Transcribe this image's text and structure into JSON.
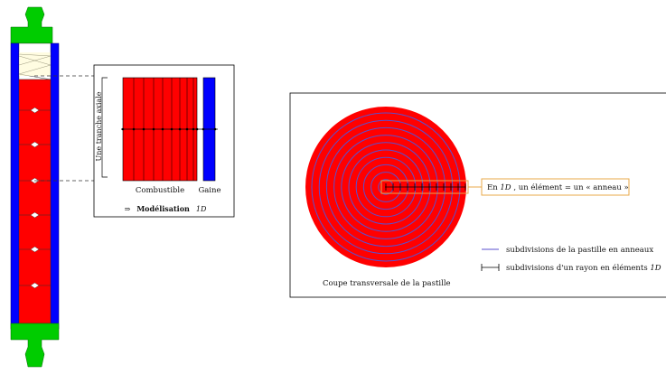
{
  "colors": {
    "fuel": "#ff0000",
    "cladding": "#0000ff",
    "endplug": "#00cc00",
    "spring": "#fff9c4",
    "callout_border": "#e8a94a",
    "ring_line": "#5a4fcf",
    "frame": "#000000"
  },
  "model1d": {
    "axial_slice_label": "Une tranche axiale",
    "fuel_label": "Combustible",
    "cladding_label": "Gaine",
    "arrow_glyph": "⇒",
    "modelisation_label": "Modélisation",
    "modelisation_suffix": "1D"
  },
  "section": {
    "callout_prefix": "En ",
    "callout_1d": "1D",
    "callout_text": ", un élément = un « anneau »",
    "coupe_label": "Coupe transversale de la pastille",
    "legend_rings": "subdivisions de la pastille en anneaux",
    "legend_radius_prefix": "subdivisions d'un rayon en éléments ",
    "legend_radius_1d": "1D"
  }
}
